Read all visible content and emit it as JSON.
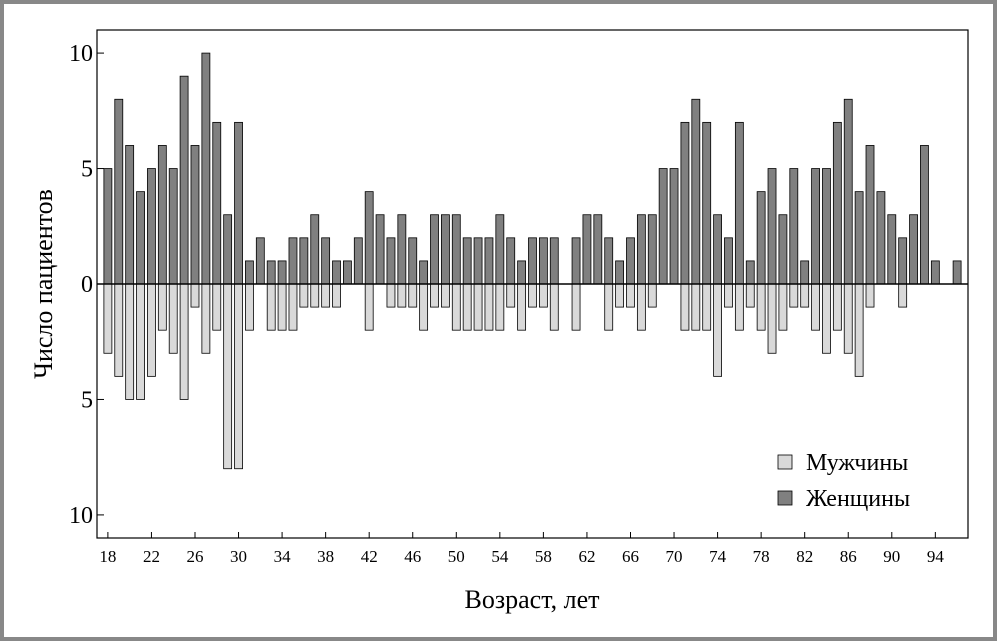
{
  "chart_data": {
    "type": "bar",
    "x_label": "Возраст, лет",
    "y_label": "Число пациентов",
    "x": [
      18,
      19,
      20,
      21,
      22,
      23,
      24,
      25,
      26,
      27,
      28,
      29,
      30,
      31,
      32,
      33,
      34,
      35,
      36,
      37,
      38,
      39,
      40,
      41,
      42,
      43,
      44,
      45,
      46,
      47,
      48,
      49,
      50,
      51,
      52,
      53,
      54,
      55,
      56,
      57,
      58,
      59,
      60,
      61,
      62,
      63,
      64,
      65,
      66,
      67,
      68,
      69,
      70,
      71,
      72,
      73,
      74,
      75,
      76,
      77,
      78,
      79,
      80,
      81,
      82,
      83,
      84,
      85,
      86,
      87,
      88,
      89,
      90,
      91,
      92,
      93,
      94,
      95,
      96
    ],
    "series": [
      {
        "name": "Мужчины",
        "color": "#d9d9d9",
        "values": [
          -3,
          -4,
          -5,
          -5,
          -4,
          -2,
          -3,
          -5,
          -1,
          -3,
          -2,
          -8,
          -8,
          -2,
          0,
          -2,
          -2,
          -2,
          -1,
          -1,
          -1,
          -1,
          0,
          0,
          -2,
          0,
          -1,
          -1,
          -1,
          -2,
          -1,
          -1,
          -2,
          -2,
          -2,
          -2,
          -2,
          -1,
          -2,
          -1,
          -1,
          -2,
          0,
          -2,
          0,
          0,
          -2,
          -1,
          -1,
          -2,
          -1,
          0,
          0,
          -2,
          -2,
          -2,
          -4,
          -1,
          -2,
          -1,
          -2,
          -3,
          -2,
          -1,
          -1,
          -2,
          -3,
          -2,
          -3,
          -4,
          -1,
          0,
          0,
          -1,
          0,
          0,
          0,
          0,
          0
        ]
      },
      {
        "name": "Женщины",
        "color": "#808080",
        "values": [
          5,
          8,
          6,
          4,
          5,
          6,
          5,
          9,
          6,
          10,
          7,
          3,
          7,
          1,
          2,
          1,
          1,
          2,
          2,
          3,
          2,
          1,
          1,
          2,
          4,
          3,
          2,
          3,
          2,
          1,
          3,
          3,
          3,
          2,
          2,
          2,
          3,
          2,
          1,
          2,
          2,
          2,
          0,
          2,
          3,
          3,
          2,
          1,
          2,
          3,
          3,
          5,
          5,
          7,
          8,
          7,
          3,
          2,
          7,
          1,
          4,
          5,
          3,
          5,
          1,
          5,
          5,
          7,
          8,
          4,
          6,
          4,
          3,
          2,
          3,
          6,
          1,
          0,
          1
        ]
      }
    ],
    "xlim": [
      17,
      97
    ],
    "xticks": [
      18,
      22,
      26,
      30,
      34,
      38,
      42,
      46,
      50,
      54,
      58,
      62,
      66,
      70,
      74,
      78,
      82,
      86,
      90,
      94
    ],
    "ylim": [
      -11,
      11
    ],
    "yticks": [
      {
        "value": -10,
        "label": "10"
      },
      {
        "value": -5,
        "label": "5"
      },
      0,
      5,
      10
    ],
    "legend": "lower right"
  }
}
